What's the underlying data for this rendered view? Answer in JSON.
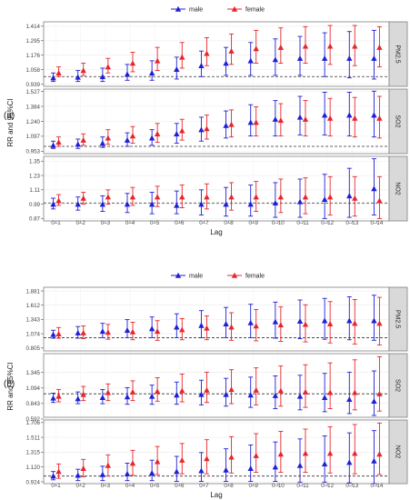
{
  "colors": {
    "male": "#1f1fd6",
    "female": "#e6262b",
    "strip": "#d9d9d9",
    "border": "#7f7f7f",
    "grid": "#ececec",
    "ref": "#333333"
  },
  "lags": [
    "0–1",
    "0–2",
    "0–3",
    "0–4",
    "0–5",
    "0–6",
    "0–7",
    "0–8",
    "0–9",
    "0–10",
    "0–11",
    "0–12",
    "0–13",
    "0–14"
  ],
  "chart_data": [
    {
      "type": "scatter",
      "panel_label": "(a)",
      "xlabel": "Lag",
      "ylabel": "RR and 95%CI",
      "legend": [
        "male",
        "female"
      ],
      "legend_position": "top",
      "facets": [
        {
          "name": "PM2.5",
          "ref": 1.0,
          "ylim": [
            0.92,
            1.45
          ],
          "ticks": [
            "1.414",
            "1.295",
            "1.176",
            "1.058",
            "0.939"
          ],
          "male": {
            "est": [
              0.99,
              0.995,
              1.0,
              1.02,
              1.03,
              1.06,
              1.09,
              1.11,
              1.13,
              1.14,
              1.15,
              1.15,
              1.15,
              1.15
            ],
            "lo": [
              0.96,
              0.96,
              0.96,
              0.97,
              0.97,
              0.98,
              1.0,
              1.01,
              1.01,
              1.01,
              1.01,
              1.0,
              0.99,
              0.98
            ],
            "hi": [
              1.03,
              1.05,
              1.07,
              1.1,
              1.13,
              1.16,
              1.21,
              1.24,
              1.28,
              1.31,
              1.33,
              1.36,
              1.37,
              1.38
            ]
          },
          "female": {
            "est": [
              1.03,
              1.05,
              1.08,
              1.11,
              1.13,
              1.16,
              1.19,
              1.21,
              1.23,
              1.24,
              1.25,
              1.25,
              1.25,
              1.24
            ],
            "lo": [
              1.0,
              1.01,
              1.03,
              1.04,
              1.05,
              1.07,
              1.09,
              1.1,
              1.11,
              1.11,
              1.11,
              1.1,
              1.09,
              1.08
            ],
            "hi": [
              1.08,
              1.11,
              1.15,
              1.2,
              1.24,
              1.28,
              1.32,
              1.35,
              1.38,
              1.4,
              1.41,
              1.42,
              1.42,
              1.41
            ]
          }
        },
        {
          "name": "SO2",
          "ref": 1.0,
          "ylim": [
            0.93,
            1.55
          ],
          "ticks": [
            "1.527",
            "1.384",
            "1.240",
            "1.097",
            "0.953"
          ],
          "male": {
            "est": [
              1.01,
              1.02,
              1.03,
              1.06,
              1.08,
              1.12,
              1.16,
              1.2,
              1.23,
              1.26,
              1.28,
              1.3,
              1.3,
              1.3
            ],
            "lo": [
              0.98,
              0.98,
              0.99,
              1.0,
              1.01,
              1.03,
              1.05,
              1.08,
              1.1,
              1.1,
              1.11,
              1.11,
              1.1,
              1.09
            ],
            "hi": [
              1.05,
              1.07,
              1.09,
              1.13,
              1.16,
              1.22,
              1.28,
              1.34,
              1.4,
              1.44,
              1.48,
              1.52,
              1.52,
              1.53
            ]
          },
          "female": {
            "est": [
              1.04,
              1.06,
              1.08,
              1.1,
              1.12,
              1.15,
              1.17,
              1.21,
              1.23,
              1.25,
              1.26,
              1.27,
              1.27,
              1.27
            ],
            "lo": [
              1.0,
              1.01,
              1.02,
              1.03,
              1.04,
              1.06,
              1.07,
              1.09,
              1.1,
              1.1,
              1.1,
              1.1,
              1.09,
              1.08
            ],
            "hi": [
              1.09,
              1.12,
              1.16,
              1.19,
              1.22,
              1.26,
              1.3,
              1.35,
              1.38,
              1.41,
              1.44,
              1.46,
              1.47,
              1.48
            ]
          }
        },
        {
          "name": "NO2",
          "ref": 1.0,
          "ylim": [
            0.85,
            1.39
          ],
          "ticks": [
            "1.35",
            "1.23",
            "1.11",
            "0.99",
            "0.87"
          ],
          "male": {
            "est": [
              0.99,
              0.99,
              0.99,
              0.99,
              0.99,
              0.98,
              0.99,
              0.99,
              0.99,
              1.0,
              1.01,
              1.03,
              1.06,
              1.12
            ],
            "lo": [
              0.95,
              0.94,
              0.93,
              0.92,
              0.91,
              0.91,
              0.9,
              0.89,
              0.89,
              0.88,
              0.88,
              0.87,
              0.88,
              0.9
            ],
            "hi": [
              1.04,
              1.05,
              1.06,
              1.08,
              1.09,
              1.1,
              1.11,
              1.13,
              1.15,
              1.17,
              1.2,
              1.24,
              1.29,
              1.37
            ]
          },
          "female": {
            "est": [
              1.02,
              1.04,
              1.05,
              1.05,
              1.05,
              1.05,
              1.05,
              1.05,
              1.05,
              1.05,
              1.05,
              1.05,
              1.04,
              1.02
            ],
            "lo": [
              0.98,
              0.99,
              0.99,
              0.98,
              0.97,
              0.96,
              0.95,
              0.94,
              0.93,
              0.92,
              0.91,
              0.9,
              0.89,
              0.87
            ],
            "hi": [
              1.07,
              1.09,
              1.11,
              1.13,
              1.14,
              1.15,
              1.16,
              1.17,
              1.18,
              1.2,
              1.21,
              1.22,
              1.22,
              1.22
            ]
          }
        }
      ]
    },
    {
      "type": "scatter",
      "panel_label": "(b)",
      "xlabel": "Lag",
      "ylabel": "RR and 95%CI",
      "legend": [
        "male",
        "female"
      ],
      "legend_position": "top",
      "facets": [
        {
          "name": "PM2.5",
          "ref": 1.0,
          "ylim": [
            0.75,
            1.95
          ],
          "ticks": [
            "1.881",
            "1.612",
            "1.343",
            "1.074",
            "0.805"
          ],
          "male": {
            "est": [
              1.06,
              1.09,
              1.12,
              1.14,
              1.17,
              1.2,
              1.23,
              1.26,
              1.28,
              1.3,
              1.31,
              1.32,
              1.32,
              1.32
            ],
            "lo": [
              0.99,
              0.99,
              1.0,
              1.0,
              1.0,
              1.0,
              1.0,
              1.0,
              1.0,
              0.99,
              0.98,
              0.97,
              0.96,
              0.95
            ],
            "hi": [
              1.14,
              1.21,
              1.27,
              1.34,
              1.39,
              1.45,
              1.51,
              1.57,
              1.63,
              1.67,
              1.71,
              1.74,
              1.77,
              1.8
            ]
          },
          "female": {
            "est": [
              1.07,
              1.09,
              1.1,
              1.11,
              1.12,
              1.15,
              1.18,
              1.2,
              1.22,
              1.24,
              1.25,
              1.26,
              1.27,
              1.27
            ],
            "lo": [
              0.99,
              0.98,
              0.97,
              0.96,
              0.95,
              0.96,
              0.96,
              0.95,
              0.94,
              0.93,
              0.92,
              0.9,
              0.88,
              0.86
            ],
            "hi": [
              1.19,
              1.22,
              1.25,
              1.29,
              1.32,
              1.36,
              1.41,
              1.47,
              1.53,
              1.58,
              1.62,
              1.68,
              1.72,
              1.76
            ]
          }
        },
        {
          "name": "SO2",
          "ref": 1.0,
          "ylim": [
            0.62,
            1.65
          ],
          "ticks": [
            "1.345",
            "1.094",
            "0.843",
            "0.592"
          ],
          "male": {
            "est": [
              0.93,
              0.92,
              0.94,
              0.95,
              0.96,
              0.98,
              0.99,
              0.99,
              0.98,
              0.97,
              0.96,
              0.94,
              0.91,
              0.88
            ],
            "lo": [
              0.86,
              0.84,
              0.84,
              0.83,
              0.83,
              0.83,
              0.82,
              0.8,
              0.78,
              0.76,
              0.74,
              0.71,
              0.68,
              0.65
            ],
            "hi": [
              1.01,
              1.03,
              1.07,
              1.1,
              1.14,
              1.19,
              1.22,
              1.25,
              1.27,
              1.29,
              1.3,
              1.33,
              1.35,
              1.37
            ]
          },
          "female": {
            "est": [
              0.96,
              0.99,
              1.02,
              1.03,
              1.04,
              1.05,
              1.06,
              1.07,
              1.06,
              1.05,
              1.03,
              1.02,
              1.02,
              1.0
            ],
            "lo": [
              0.87,
              0.89,
              0.89,
              0.89,
              0.88,
              0.87,
              0.86,
              0.84,
              0.82,
              0.8,
              0.78,
              0.76,
              0.74,
              0.72
            ],
            "hi": [
              1.07,
              1.12,
              1.16,
              1.21,
              1.26,
              1.32,
              1.35,
              1.39,
              1.42,
              1.45,
              1.47,
              1.5,
              1.55,
              1.6
            ]
          }
        },
        {
          "name": "NO2",
          "ref": 1.0,
          "ylim": [
            0.9,
            1.74
          ],
          "ticks": [
            "1.706",
            "1.511",
            "1.315",
            "1.120",
            "0.924"
          ],
          "male": {
            "est": [
              1.0,
              1.01,
              1.02,
              1.03,
              1.04,
              1.06,
              1.07,
              1.08,
              1.1,
              1.12,
              1.14,
              1.16,
              1.18,
              1.2
            ],
            "lo": [
              0.95,
              0.94,
              0.94,
              0.94,
              0.94,
              0.93,
              0.93,
              0.93,
              0.93,
              0.93,
              0.92,
              0.92,
              0.91,
              0.9
            ],
            "hi": [
              1.06,
              1.09,
              1.13,
              1.17,
              1.21,
              1.26,
              1.31,
              1.36,
              1.41,
              1.45,
              1.49,
              1.53,
              1.57,
              1.6
            ]
          },
          "female": {
            "est": [
              1.06,
              1.1,
              1.14,
              1.17,
              1.19,
              1.21,
              1.23,
              1.25,
              1.27,
              1.29,
              1.3,
              1.3,
              1.3,
              1.29
            ],
            "lo": [
              0.97,
              0.99,
              1.0,
              1.01,
              1.02,
              1.03,
              1.03,
              1.04,
              1.05,
              1.05,
              1.05,
              1.04,
              1.03,
              1.02
            ],
            "hi": [
              1.16,
              1.22,
              1.28,
              1.34,
              1.39,
              1.43,
              1.48,
              1.52,
              1.56,
              1.59,
              1.62,
              1.65,
              1.68,
              1.7
            ]
          }
        }
      ]
    }
  ]
}
